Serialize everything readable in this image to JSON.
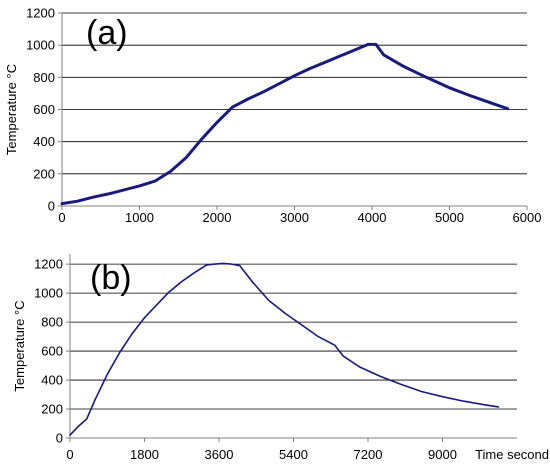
{
  "chart_data": [
    {
      "type": "line",
      "panel_label": "(a)",
      "ylabel": "Temperature °C",
      "xlabel": "",
      "xlim": [
        0,
        6000
      ],
      "ylim": [
        0,
        1200
      ],
      "x_ticks": [
        0,
        1000,
        2000,
        3000,
        4000,
        5000,
        6000
      ],
      "y_ticks": [
        0,
        200,
        400,
        600,
        800,
        1000,
        1200
      ],
      "grid": "horizontal",
      "line_color": "#1a1a7a",
      "series": [
        {
          "x": [
            0,
            200,
            400,
            600,
            800,
            1000,
            1200,
            1400,
            1600,
            1800,
            2000,
            2200,
            2400,
            2600,
            2800,
            3000,
            3200,
            3400,
            3600,
            3800,
            3950,
            4050,
            4150,
            4400,
            4700,
            5000,
            5300,
            5600,
            5750
          ],
          "y": [
            15,
            30,
            55,
            75,
            100,
            125,
            155,
            215,
            300,
            415,
            520,
            615,
            665,
            710,
            760,
            810,
            855,
            895,
            935,
            975,
            1005,
            1005,
            940,
            870,
            800,
            735,
            680,
            630,
            605
          ]
        }
      ]
    },
    {
      "type": "line",
      "panel_label": "(b)",
      "ylabel": "Temperature °C",
      "xlabel": "Time second",
      "xlim": [
        0,
        10800
      ],
      "ylim": [
        0,
        1270
      ],
      "x_ticks": [
        0,
        1800,
        3600,
        5400,
        7200,
        9000
      ],
      "y_ticks": [
        0,
        200,
        400,
        600,
        800,
        1000,
        1200
      ],
      "grid": "horizontal",
      "line_color": "#1a1a7a",
      "series": [
        {
          "x": [
            0,
            200,
            400,
            600,
            900,
            1200,
            1500,
            1800,
            2100,
            2400,
            2700,
            3000,
            3300,
            3500,
            3700,
            3900,
            4100,
            4400,
            4800,
            5200,
            5600,
            6000,
            6400,
            6600,
            7000,
            7500,
            8000,
            8500,
            9000,
            9500,
            10000,
            10350
          ],
          "y": [
            20,
            80,
            130,
            260,
            440,
            590,
            720,
            830,
            920,
            1010,
            1080,
            1140,
            1195,
            1200,
            1205,
            1200,
            1190,
            1080,
            950,
            860,
            780,
            700,
            640,
            565,
            490,
            425,
            370,
            320,
            285,
            255,
            230,
            215
          ]
        }
      ]
    }
  ]
}
